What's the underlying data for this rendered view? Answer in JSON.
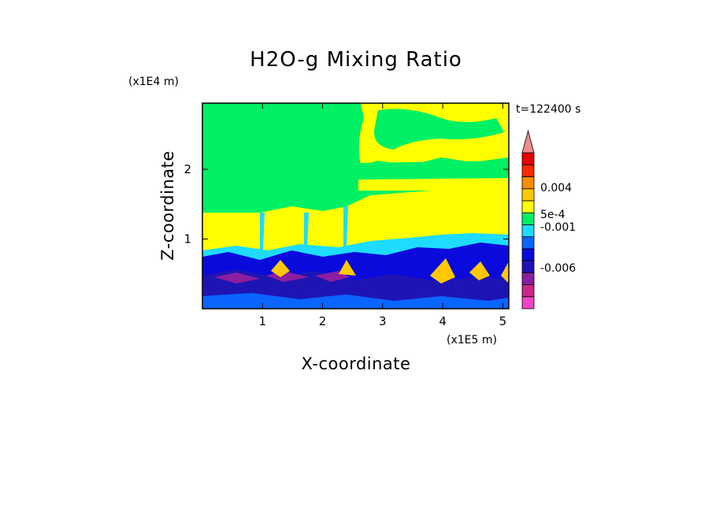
{
  "chart_data": {
    "type": "heatmap",
    "title": "H2O-g Mixing Ratio",
    "xlabel": "X-coordinate",
    "ylabel": "Z-coordinate",
    "x_unit": "(x1E5 m)",
    "y_unit": "(x1E4 m)",
    "time_label": "t=122400 s",
    "xlim": [
      0,
      5.1
    ],
    "ylim": [
      0,
      2.95
    ],
    "x_ticks": [
      "1",
      "2",
      "3",
      "4",
      "5"
    ],
    "y_ticks": [
      "1",
      "2"
    ],
    "colorbar": {
      "levels": [
        {
          "color": "#f044c8"
        },
        {
          "color": "#c8288c"
        },
        {
          "color": "#8c1ea0"
        },
        {
          "color": "#1e14b4"
        },
        {
          "color": "#0a0adc"
        },
        {
          "color": "#0a64ff"
        },
        {
          "color": "#1edcff"
        },
        {
          "color": "#00f064"
        },
        {
          "color": "#ffff00"
        },
        {
          "color": "#ffc800"
        },
        {
          "color": "#ff8c00"
        },
        {
          "color": "#ff2800"
        },
        {
          "color": "#e60000"
        },
        {
          "color": "#f08c8c"
        }
      ],
      "tick_labels": [
        "0.004",
        "5e-4",
        "-0.001",
        "-0.006"
      ]
    },
    "regions": [
      {
        "name": "upper layer",
        "z_range": [
          1.4,
          2.95
        ],
        "dominant": "green",
        "notes": "yellow patches for x > 2.3"
      },
      {
        "name": "mid layer",
        "z_range": [
          0.8,
          1.4
        ],
        "dominant": "yellow"
      },
      {
        "name": "cyan band",
        "z_range": [
          0.6,
          0.8
        ],
        "dominant": "cyan"
      },
      {
        "name": "boundary layer",
        "z_range": [
          0,
          0.6
        ],
        "dominant": "blue",
        "notes": "purple cores near x 0.3-2.2, orange/yellow plumes near x 1.1, 2.4, 3.9, 4.6"
      }
    ]
  }
}
